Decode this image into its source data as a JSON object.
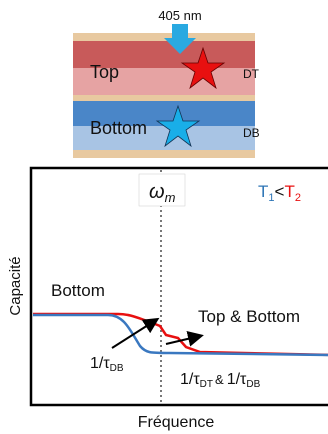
{
  "stack": {
    "laser": "405 nm",
    "top_layer": "Top",
    "top_defect": "DT",
    "bottom_layer": "Bottom",
    "bottom_defect": "DB"
  },
  "plot": {
    "omega": {
      "symbol": "ω",
      "sub": "m"
    },
    "legend": {
      "t1": "T",
      "t1_sub": "1",
      "relation": "<",
      "t2": "T",
      "t2_sub": "2"
    },
    "y_label": "Capacité",
    "x_label": "Fréquence",
    "curve_labels": {
      "bottom": "Bottom",
      "top_bottom": "Top & Bottom"
    },
    "annotations": {
      "bottom_rate": {
        "rate": "1/τ",
        "sub": "DB"
      },
      "both_rates": {
        "rate_1": "1/τ",
        "sub_1": "DT",
        "and": "&",
        "rate_2": "1/τ",
        "sub_2": "DB"
      }
    }
  }
}
